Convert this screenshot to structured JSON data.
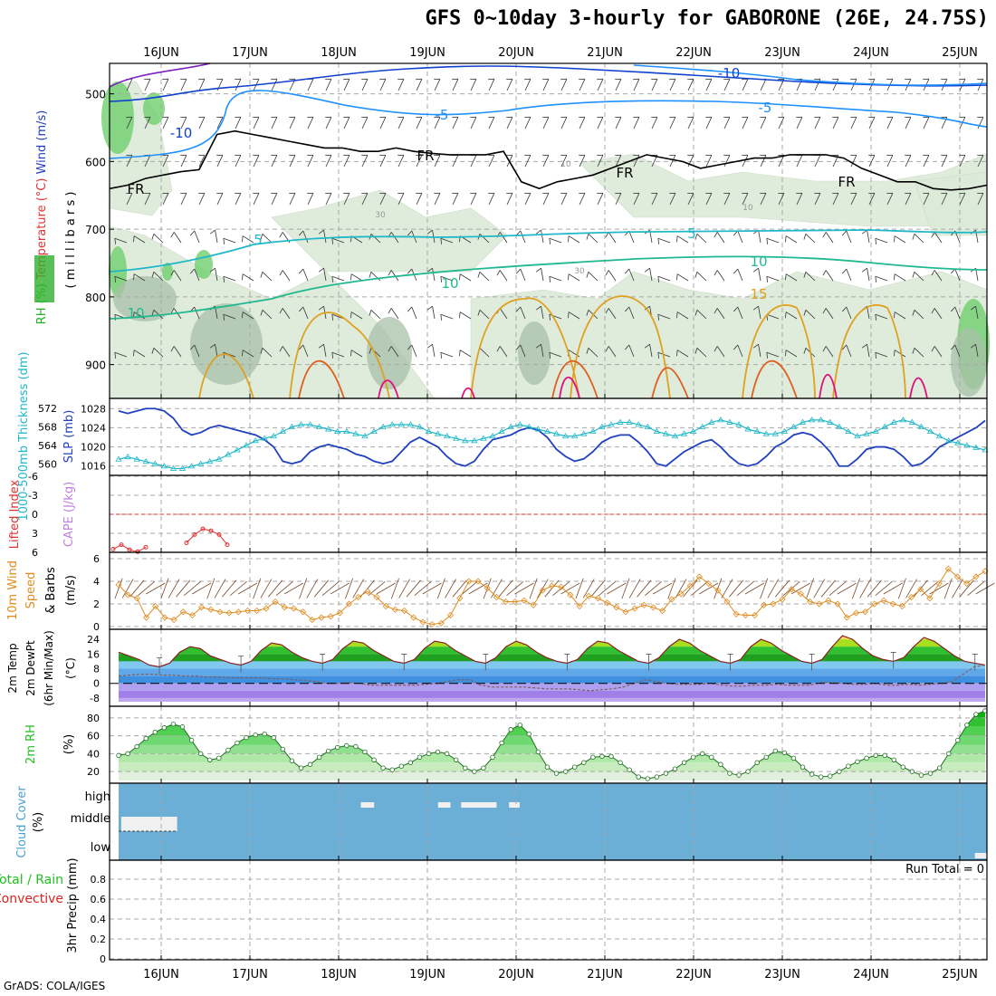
{
  "title": "GFS 0~10day 3-hourly for GABORONE (26E, 24.75S)",
  "credit": "GrADS: COLA/IGES",
  "colors": {
    "grid": "#a8a8a8",
    "temp_red": "#e03030",
    "wind_blue": "#2040c0",
    "slp_blue": "#2040c0",
    "thick_cyan": "#20b8c8",
    "wind_orange": "#e08c20",
    "cloud_blue": "#6baed6",
    "rh_green": "#20c020",
    "cape_purple": "#c080e0",
    "rain_red": "#e02020",
    "total_green": "#20c020",
    "rh_label": "#40c040"
  },
  "chart_data": [
    {
      "type": "contour",
      "panel": "upper-air",
      "ylabel_parts": [
        "RH (%)",
        "Temperature (°C)",
        "Wind (m/s)"
      ],
      "ylabel2": "( m i l l i b a r s )",
      "y_ticks": [
        "500",
        "600",
        "700",
        "800",
        "900"
      ],
      "ylim": [
        950,
        455
      ],
      "contour_labels": [
        "-10",
        "-5",
        "-10",
        "-5",
        "FR",
        "FR",
        "FR",
        "FR",
        "5",
        "5",
        "10",
        "10",
        "10",
        "15",
        "30",
        "30",
        "10",
        "10"
      ],
      "freezing_level_mb": [
        640,
        635,
        625,
        620,
        615,
        612,
        560,
        555,
        560,
        565,
        570,
        575,
        580,
        580,
        585,
        585,
        580,
        585,
        588,
        590,
        590,
        590,
        585,
        630,
        640,
        630,
        625,
        620,
        610,
        600,
        590,
        595,
        600,
        610,
        605,
        600,
        595,
        595,
        590,
        590,
        590,
        595,
        610,
        620,
        630,
        630,
        640,
        642,
        640,
        635
      ],
      "x_labels": [
        "16JUN",
        "17JUN",
        "18JUN",
        "19JUN",
        "20JUN",
        "21JUN",
        "22JUN",
        "23JUN",
        "24JUN",
        "25JUN"
      ]
    },
    {
      "type": "line",
      "panel": "slp-thickness",
      "ylabel_left": "1000-500mb Thickness (dm)",
      "ylabel_right": "SLP (mb)",
      "y_ticks_left": [
        "572",
        "568",
        "564",
        "560"
      ],
      "y_ticks_right": [
        "1028",
        "1024",
        "1020",
        "1016"
      ],
      "series": [
        {
          "name": "SLP (mb)",
          "color": "#2040c0",
          "values": [
            1027.5,
            1027,
            1027.5,
            1028,
            1028,
            1027.5,
            1026,
            1023.5,
            1022.5,
            1023,
            1024,
            1024.5,
            1024,
            1023.5,
            1023,
            1022.5,
            1021.5,
            1020,
            1017,
            1016.5,
            1017,
            1019,
            1020,
            1020.5,
            1020,
            1019.5,
            1018.5,
            1018,
            1017,
            1016.5,
            1017,
            1019,
            1021,
            1022,
            1021,
            1020,
            1018,
            1016.5,
            1016,
            1017,
            1019.5,
            1021.5,
            1022,
            1022.5,
            1023.5,
            1024,
            1023.5,
            1022,
            1019.5,
            1018,
            1017,
            1017.5,
            1019,
            1021,
            1022,
            1022.5,
            1022.5,
            1021,
            1019,
            1016.5,
            1016,
            1017.5,
            1019,
            1020,
            1021,
            1021.5,
            1020,
            1018,
            1016.5,
            1016,
            1016.5,
            1018,
            1020,
            1021,
            1022.5,
            1023,
            1022.5,
            1021,
            1019,
            1016,
            1016,
            1017.5,
            1019.5,
            1020,
            1020,
            1019.5,
            1018,
            1016,
            1016.5,
            1018,
            1020,
            1021,
            1022,
            1023,
            1024,
            1025.5
          ]
        },
        {
          "name": "Thickness (dm)",
          "color": "#20b8c8",
          "values": [
            561,
            561.5,
            561,
            560.5,
            560,
            559.5,
            559,
            559,
            559.5,
            560,
            560.5,
            561,
            562,
            563,
            564,
            565,
            565.5,
            566,
            567,
            568,
            568.5,
            568.5,
            568,
            567.5,
            567,
            567,
            566.5,
            566,
            567,
            568,
            568.5,
            568.5,
            568.5,
            568,
            567,
            566.5,
            566,
            565.5,
            565,
            565,
            565.5,
            566,
            567,
            568,
            568.5,
            568,
            567.5,
            567,
            566.5,
            566,
            566,
            566.5,
            567,
            568,
            568.5,
            569,
            569,
            568.5,
            568,
            567,
            566.5,
            566,
            566.5,
            567,
            568,
            569,
            569.5,
            569,
            568.5,
            567.5,
            567,
            566.5,
            566.5,
            567,
            568,
            569,
            569.5,
            569.5,
            569,
            568,
            567,
            566,
            566.5,
            567,
            568,
            569,
            569.5,
            569,
            568,
            567,
            566,
            565,
            564.5,
            564,
            563.5,
            563
          ]
        }
      ]
    },
    {
      "type": "line",
      "panel": "lifted-index",
      "ylabel_left": "Lifted Index",
      "ylabel_right": "CAPE (J/kg)",
      "y_ticks": [
        "-6",
        "-3",
        "0",
        "3",
        "6"
      ],
      "ylim": [
        6,
        -6
      ],
      "series": [
        {
          "name": "Lifted Index",
          "color": "#e03030",
          "values": [
            5.5,
            4.8,
            5.6,
            5.9,
            5.2,
            null,
            null,
            null,
            null,
            4.5,
            3.2,
            2.3,
            2.6,
            3.2,
            4.8
          ]
        }
      ]
    },
    {
      "type": "line",
      "panel": "10m-wind",
      "ylabel": "10m Wind Speed & Barbs (m/s)",
      "y_ticks": [
        "6",
        "4",
        "2",
        "0"
      ],
      "ylim": [
        0,
        6
      ],
      "series": [
        {
          "name": "Wind Speed (m/s)",
          "color": "#e08c20",
          "values": [
            3.7,
            2.8,
            2.5,
            0.8,
            1.8,
            0.8,
            0.6,
            1.3,
            1.0,
            1.7,
            1.5,
            1.3,
            1.2,
            1.3,
            1.4,
            1.4,
            1.6,
            2.2,
            1.7,
            1.6,
            1.3,
            0.6,
            0.8,
            0.9,
            1.2,
            2.0,
            2.6,
            3.1,
            2.6,
            1.8,
            1.5,
            1.4,
            0.8,
            0.4,
            0.2,
            0.3,
            1.0,
            2.5,
            4.0,
            4.0,
            3.4,
            2.6,
            2.2,
            2.2,
            2.3,
            1.9,
            3.2,
            3.6,
            3.5,
            2.8,
            1.8,
            2.7,
            2.5,
            2.1,
            1.7,
            1.3,
            1.6,
            1.9,
            1.7,
            1.4,
            2.4,
            2.9,
            3.6,
            4.4,
            3.8,
            3.2,
            2.2,
            1.1,
            1.0,
            1.0,
            1.9,
            2.0,
            2.4,
            3.3,
            2.9,
            2.2,
            2.0,
            2.3,
            2.0,
            0.8,
            1.2,
            1.3,
            2.0,
            2.3,
            2.0,
            1.8,
            2.6,
            3.3,
            2.5,
            3.8,
            5.1,
            4.4,
            3.8,
            4.4,
            4.9
          ]
        }
      ]
    },
    {
      "type": "area",
      "panel": "2m-temp",
      "ylabel": "2m Temp 2m DewPt (6hr Min/Max) (°C)",
      "y_ticks": [
        "24",
        "16",
        "8",
        "0",
        "-8"
      ],
      "ylim": [
        -10,
        28
      ],
      "series": [
        {
          "name": "2m Temp",
          "values": [
            17,
            15,
            13,
            10,
            9,
            11,
            17,
            20,
            19,
            15,
            13,
            11,
            10,
            12,
            18,
            22,
            21,
            17,
            14,
            12,
            11,
            13,
            19,
            23,
            22,
            18,
            15,
            12,
            11,
            13,
            19,
            23,
            22,
            18,
            15,
            12,
            11,
            14,
            20,
            23,
            21,
            17,
            14,
            12,
            11,
            13,
            19,
            23,
            22,
            18,
            15,
            12,
            11,
            14,
            20,
            24,
            22,
            18,
            15,
            12,
            11,
            13,
            20,
            24,
            22,
            18,
            15,
            12,
            11,
            13,
            20,
            26,
            24,
            19,
            15,
            13,
            12,
            14,
            20,
            25,
            23,
            19,
            15,
            12,
            11,
            10
          ]
        },
        {
          "name": "2m DewPt",
          "values": [
            4,
            4.5,
            5,
            5,
            4.5,
            4.5,
            4,
            4,
            3.5,
            3.5,
            3,
            3,
            3,
            3,
            2.5,
            2.5,
            2,
            1.5,
            1,
            0,
            0,
            0.5,
            0,
            -1,
            -1,
            -1,
            -1,
            -1,
            -0.5,
            0,
            1,
            2,
            2,
            -1,
            -2,
            -2,
            -2,
            -2,
            -2.5,
            -3,
            -3,
            -3,
            -3.5,
            -4,
            -3.5,
            -3,
            -2,
            0,
            2,
            1,
            0,
            -0.5,
            -0.5,
            -0.5,
            0,
            -1,
            -1.5,
            -1.5,
            -1,
            -1,
            -0.5,
            -1,
            -1,
            -1,
            0.5,
            0.5,
            0,
            -0.5,
            -0.5,
            0,
            -1,
            -1,
            -0.5,
            -1,
            -0.5,
            0,
            1,
            5,
            9,
            10
          ]
        }
      ]
    },
    {
      "type": "area",
      "panel": "2m-rh",
      "ylabel": "2m RH (%)",
      "y_ticks": [
        "80",
        "60",
        "40",
        "20"
      ],
      "ylim": [
        10,
        90
      ],
      "series": [
        {
          "name": "2m RH",
          "values": [
            38,
            40,
            48,
            57,
            64,
            69,
            73,
            70,
            55,
            40,
            33,
            35,
            44,
            52,
            58,
            61,
            62,
            58,
            45,
            32,
            24,
            28,
            36,
            43,
            47,
            49,
            48,
            42,
            33,
            24,
            22,
            26,
            30,
            36,
            40,
            42,
            40,
            33,
            24,
            20,
            24,
            36,
            52,
            67,
            72,
            62,
            42,
            25,
            18,
            20,
            25,
            30,
            36,
            37,
            37,
            30,
            22,
            14,
            12,
            14,
            18,
            23,
            30,
            36,
            40,
            36,
            28,
            18,
            16,
            20,
            30,
            36,
            43,
            41,
            35,
            25,
            17,
            14,
            15,
            20,
            26,
            31,
            35,
            38,
            38,
            33,
            25,
            20,
            16,
            18,
            24,
            40,
            55,
            72,
            84,
            88
          ]
        }
      ]
    },
    {
      "type": "bar",
      "panel": "cloud-cover",
      "ylabel": "Cloud Cover (%)",
      "y_ticks": [
        "high",
        "middle",
        "low"
      ],
      "series": [
        {
          "name": "high cloud",
          "blocks": [
            [
              2.25,
              2.4
            ],
            [
              3.12,
              3.26
            ],
            [
              3.38,
              3.78
            ],
            [
              3.92,
              4.04
            ]
          ]
        },
        {
          "name": "middle cloud",
          "blocks": [
            [
              -0.45,
              0.18
            ]
          ]
        },
        {
          "name": "low cloud",
          "blocks": [
            [
              9.17,
              9.3
            ]
          ]
        }
      ]
    },
    {
      "type": "bar",
      "panel": "precip",
      "ylabel_left": "Total / Rain",
      "ylabel_right": "Convective",
      "ylabel_axis": "3hr Precip (mm)",
      "y_ticks": [
        "0.8",
        "0.6",
        "0.4",
        "0.2",
        "0"
      ],
      "ylim": [
        0,
        0.9
      ],
      "annotation": "Run Total = 0",
      "values": [],
      "x_labels": [
        "16JUN",
        "17JUN",
        "18JUN",
        "19JUN",
        "20JUN",
        "21JUN",
        "22JUN",
        "23JUN",
        "24JUN",
        "25JUN"
      ]
    }
  ]
}
